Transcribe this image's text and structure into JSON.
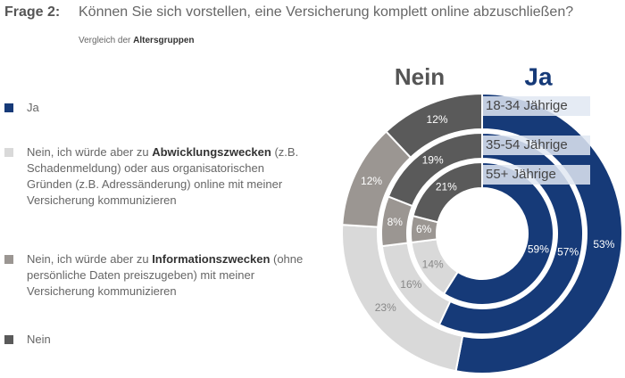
{
  "chart_data": {
    "type": "donut",
    "title_prefix": "Frage 2:",
    "title": "Können Sie sich vorstellen, eine Versicherung komplett online abzuschließen?",
    "subtitle_parts": [
      "Vergleich der ",
      "Altersgruppen"
    ],
    "rings": [
      "18-34 Jährige",
      "35-54 Jährige",
      "55+ Jährige"
    ],
    "series": [
      {
        "name_parts": [
          "Ja"
        ],
        "color": "#163a78",
        "values": [
          53,
          57,
          59
        ],
        "value_labels": [
          "53%",
          "57%",
          "59%"
        ]
      },
      {
        "name_parts": [
          "Nein, ich würde aber zu ",
          "Abwicklungszwecken",
          " (z.B. Schadenmeldung) oder aus organisatorischen Gründen (z.B. Adressänderung) online mit meiner Versicherung kommunizieren"
        ],
        "color": "#d9d9d9",
        "values": [
          23,
          16,
          14
        ],
        "value_labels": [
          "23%",
          "16%",
          "14%"
        ]
      },
      {
        "name_parts": [
          "Nein, ich würde aber zu ",
          "Informationszwecken",
          " (ohne persönliche Daten preiszugeben) mit meiner Versicherung kommunizieren"
        ],
        "color": "#9b9692",
        "values": [
          12,
          8,
          6
        ],
        "value_labels": [
          "12%",
          "8%",
          "6%"
        ]
      },
      {
        "name_parts": [
          "Nein"
        ],
        "color": "#5a5a5a",
        "values": [
          12,
          19,
          21
        ],
        "value_labels": [
          "12%",
          "19%",
          "21%"
        ]
      }
    ]
  }
}
